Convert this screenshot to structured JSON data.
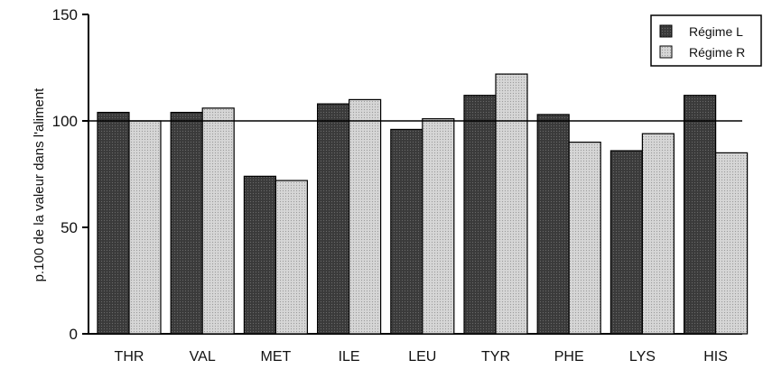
{
  "chart_data": {
    "type": "bar",
    "title": "",
    "xlabel": "",
    "ylabel": "p.100 de la valeur dans l'aliment",
    "ylim": [
      0,
      150
    ],
    "yticks": [
      0,
      50,
      100,
      150
    ],
    "reference_line": 100,
    "grid": false,
    "legend_position": "top-right",
    "categories": [
      "THR",
      "VAL",
      "MET",
      "ILE",
      "LEU",
      "TYR",
      "PHE",
      "LYS",
      "HIS"
    ],
    "series": [
      {
        "name": "Régime L",
        "color": "#3a3a3a",
        "values": [
          104,
          104,
          74,
          108,
          96,
          112,
          103,
          86,
          112
        ]
      },
      {
        "name": "Régime R",
        "color": "#cfcfcf",
        "values": [
          100,
          106,
          72,
          110,
          101,
          122,
          90,
          94,
          85
        ]
      }
    ]
  }
}
